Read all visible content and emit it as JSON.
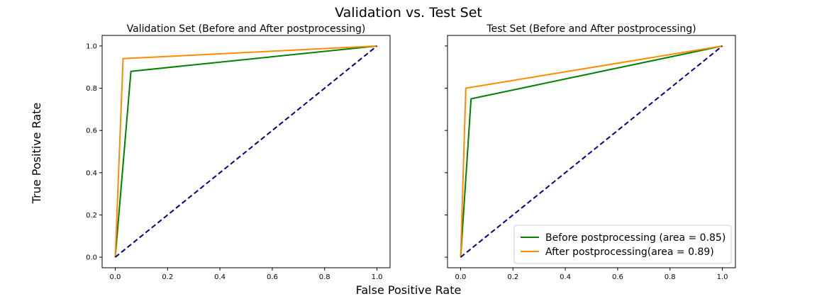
{
  "figure": {
    "title": "Validation vs. Test Set",
    "xlabel": "False Positive Rate",
    "ylabel": "True Positive Rate"
  },
  "colors": {
    "before": "#008000",
    "after": "#ff8c00",
    "chance": "#000080",
    "frame": "#000000"
  },
  "chart_data": [
    {
      "type": "line",
      "title": "Validation Set (Before and After postprocessing)",
      "xlim": [
        -0.05,
        1.05
      ],
      "ylim": [
        -0.05,
        1.05
      ],
      "xticks": [
        "0.0",
        "0.2",
        "0.4",
        "0.6",
        "0.8",
        "1.0"
      ],
      "yticks": [
        "0.0",
        "0.2",
        "0.4",
        "0.6",
        "0.8",
        "1.0"
      ],
      "show_yticklabels": true,
      "grid": false,
      "legend": null,
      "series": [
        {
          "key": "before",
          "x": [
            0,
            0.06,
            1
          ],
          "y": [
            0,
            0.88,
            1
          ]
        },
        {
          "key": "after",
          "x": [
            0,
            0.03,
            1
          ],
          "y": [
            0,
            0.94,
            1
          ]
        },
        {
          "key": "chance",
          "style": "dashed",
          "x": [
            0,
            1
          ],
          "y": [
            0,
            1
          ]
        }
      ]
    },
    {
      "type": "line",
      "title": "Test Set (Before and After postprocessing)",
      "xlim": [
        -0.05,
        1.05
      ],
      "ylim": [
        -0.05,
        1.05
      ],
      "xticks": [
        "0.0",
        "0.2",
        "0.4",
        "0.6",
        "0.8",
        "1.0"
      ],
      "yticks": [
        "0.0",
        "0.2",
        "0.4",
        "0.6",
        "0.8",
        "1.0"
      ],
      "show_yticklabels": false,
      "grid": false,
      "legend": "lower-right",
      "series": [
        {
          "key": "before",
          "name": "Before postprocessing (area = 0.85)",
          "x": [
            0,
            0.04,
            1
          ],
          "y": [
            0,
            0.75,
            1
          ]
        },
        {
          "key": "after",
          "name": "After postprocessing(area = 0.89)",
          "x": [
            0,
            0.02,
            1
          ],
          "y": [
            0,
            0.8,
            1
          ]
        },
        {
          "key": "chance",
          "style": "dashed",
          "x": [
            0,
            1
          ],
          "y": [
            0,
            1
          ]
        }
      ]
    }
  ]
}
